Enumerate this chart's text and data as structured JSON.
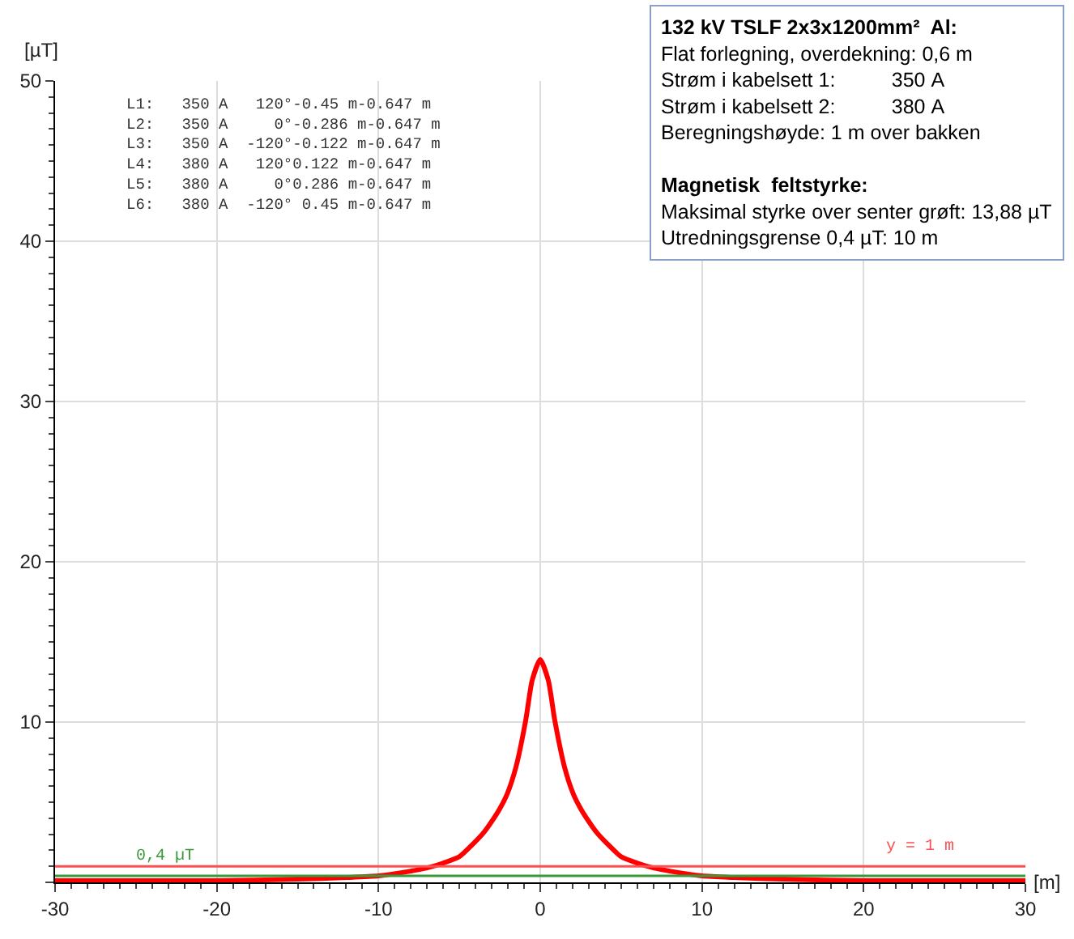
{
  "chart_data": {
    "type": "line",
    "title": "132 kV TSLF 2x3x1200mm²  Al:",
    "subtitle": "Magnetisk  feltstyrke:",
    "xlabel": "[m]",
    "ylabel": "[µT]",
    "x": [
      -30,
      -25,
      -20,
      -15,
      -12,
      -10,
      -8,
      -7,
      -6,
      -5,
      -4.25,
      -3.5,
      -3,
      -2.5,
      -2.05,
      -1.5,
      -0.9,
      -0.5,
      0,
      0.5,
      0.9,
      1.5,
      2.05,
      2.5,
      3,
      3.5,
      4.25,
      5,
      6,
      7,
      8,
      10,
      12,
      15,
      20,
      25,
      30
    ],
    "series": [
      {
        "color": "#ff0000",
        "values": [
          0.1,
          0.1,
          0.1,
          0.2,
          0.3,
          0.4,
          0.7,
          0.9,
          1.2,
          1.6,
          2.3,
          3.1,
          3.8,
          4.6,
          5.5,
          7.2,
          10.1,
          12.6,
          13.9,
          12.6,
          10.1,
          7.2,
          5.5,
          4.6,
          3.8,
          3.1,
          2.3,
          1.6,
          1.2,
          0.9,
          0.7,
          0.4,
          0.3,
          0.2,
          0.1,
          0.1,
          0.1
        ]
      }
    ],
    "xlim": [
      -30,
      30
    ],
    "xticks": [
      -30,
      -20,
      -10,
      0,
      10,
      20,
      30
    ],
    "ylim": [
      0,
      50
    ],
    "yticks": [
      {
        "value": 0,
        "label": null
      },
      10,
      20,
      30,
      40,
      50
    ],
    "grid": true,
    "marker": "none",
    "line_style": "solid",
    "ref_lines": [
      {
        "axis": "y",
        "value": 0.4,
        "label": "0,4 µT",
        "color": "#3a9a3a"
      },
      {
        "axis": "y",
        "value": 1,
        "label": "y = 1 m",
        "color": "#ff5050"
      }
    ],
    "annotations": [
      "L1:   350 A   120°-0.45 m-0.647 m",
      "L2:   350 A     0°-0.286 m-0.647 m",
      "L3:   350 A  -120°-0.122 m-0.647 m",
      "L4:   380 A   120°0.122 m-0.647 m",
      "L5:   380 A     0°0.286 m-0.647 m",
      "L6:   380 A  -120° 0.45 m-0.647 m",
      "Flat forlegning, overdekning: 0,6 m",
      "Strøm i kabelsett 1:          350 A",
      "Strøm i kabelsett 2:          380 A",
      "Beregningshøyde: 1 m over bakken",
      "Maksimal styrke over senter grøft: 13,88 µT",
      "Utredningsgrense 0,4 µT: 10 m"
    ]
  }
}
